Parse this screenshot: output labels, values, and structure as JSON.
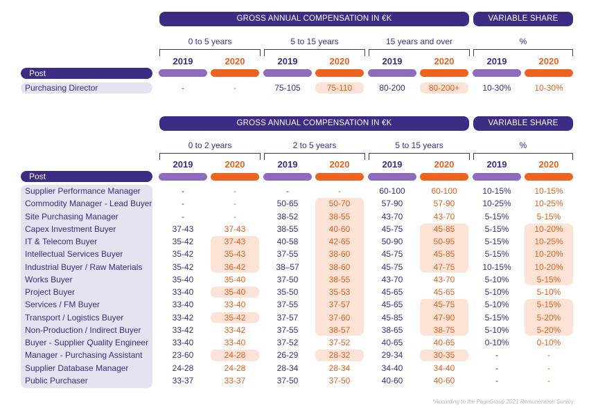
{
  "table1": {
    "banner_gross": "GROSS ANNUAL COMPENSATION IN €K",
    "banner_variable": "VARIABLE SHARE",
    "ranges": [
      "0 to 5 years",
      "5 to 15 years",
      "15 years and over",
      "%"
    ],
    "year_2019": "2019",
    "year_2020": "2020",
    "post_header": "Post",
    "rows": [
      {
        "post": "Purchasing Director",
        "values": [
          "-",
          "-",
          "75-105",
          "75-110",
          "80-200",
          "80-200+",
          "10-30%",
          "10-30%"
        ],
        "highlight": [
          false,
          false,
          false,
          true,
          false,
          true,
          false,
          false
        ]
      }
    ]
  },
  "table2": {
    "banner_gross": "GROSS ANNUAL COMPENSATION IN €K",
    "banner_variable": "VARIABLE SHARE",
    "ranges": [
      "0 to 2 years",
      "2 to 5 years",
      "5 to 15 years",
      "%"
    ],
    "year_2019": "2019",
    "year_2020": "2020",
    "post_header": "Post",
    "rows": [
      {
        "post": "Supplier Performance Manager",
        "values": [
          "-",
          "-",
          "-",
          "-",
          "60-100",
          "60-100",
          "10-15%",
          "10-15%"
        ],
        "highlight": [
          false,
          false,
          false,
          false,
          false,
          false,
          false,
          false
        ]
      },
      {
        "post": "Commodity Manager - Lead Buyer",
        "values": [
          "-",
          "-",
          "50-65",
          "50-70",
          "57-90",
          "57-90",
          "10-25%",
          "10-25%"
        ],
        "highlight": [
          false,
          false,
          false,
          true,
          false,
          false,
          false,
          false
        ]
      },
      {
        "post": "Site Purchasing Manager",
        "values": [
          "-",
          "-",
          "38-52",
          "38-55",
          "43-70",
          "43-70",
          "5-15%",
          "5-15%"
        ],
        "highlight": [
          false,
          false,
          false,
          true,
          false,
          false,
          false,
          false
        ]
      },
      {
        "post": "Capex Investment Buyer",
        "values": [
          "37-43",
          "37-43",
          "38-55",
          "40-60",
          "45-75",
          "45-85",
          "5-15%",
          "10-20%"
        ],
        "highlight": [
          false,
          false,
          false,
          true,
          false,
          true,
          false,
          true
        ]
      },
      {
        "post": "IT & Telecom Buyer",
        "values": [
          "35-42",
          "37-43",
          "40-58",
          "42-65",
          "50-90",
          "50-95",
          "5-15%",
          "10-25%"
        ],
        "highlight": [
          false,
          true,
          false,
          true,
          false,
          true,
          false,
          true
        ]
      },
      {
        "post": "Intellectual Services Buyer",
        "values": [
          "35-42",
          "35-43",
          "37-55",
          "38-60",
          "45-75",
          "45-85",
          "5-15%",
          "10-20%"
        ],
        "highlight": [
          false,
          true,
          false,
          true,
          false,
          true,
          false,
          true
        ]
      },
      {
        "post": "Industrial Buyer / Raw Materials",
        "values": [
          "35-42",
          "36-42",
          "38–57",
          "38-60",
          "45-75",
          "47-75",
          "10-15%",
          "10-20%"
        ],
        "highlight": [
          false,
          true,
          false,
          true,
          false,
          true,
          false,
          true
        ]
      },
      {
        "post": "Works Buyer",
        "values": [
          "35-40",
          "35-40",
          "37-50",
          "38-55",
          "43-70",
          "43-70",
          "5-10%",
          "5-15%"
        ],
        "highlight": [
          false,
          false,
          false,
          true,
          false,
          false,
          false,
          true
        ]
      },
      {
        "post": "Project Buyer",
        "values": [
          "33-40",
          "35-40",
          "35-50",
          "35-53",
          "45-65",
          "45-65",
          "5-10%",
          "5-10%"
        ],
        "highlight": [
          false,
          true,
          false,
          true,
          false,
          false,
          false,
          false
        ]
      },
      {
        "post": "Services / FM Buyer",
        "values": [
          "33-40",
          "33-40",
          "37-55",
          "37-57",
          "45-65",
          "45-75",
          "5-10%",
          "5-15%"
        ],
        "highlight": [
          false,
          false,
          false,
          true,
          false,
          true,
          false,
          true
        ]
      },
      {
        "post": "Transport / Logistics Buyer",
        "values": [
          "33-42",
          "35-42",
          "37-57",
          "37-60",
          "45-85",
          "47-90",
          "5-15%",
          "5-20%"
        ],
        "highlight": [
          false,
          true,
          false,
          true,
          false,
          true,
          false,
          true
        ]
      },
      {
        "post": "Non-Production / Indirect Buyer",
        "values": [
          "33-42",
          "33-42",
          "37-55",
          "38-57",
          "38-65",
          "38-75",
          "5-10%",
          "5-20%"
        ],
        "highlight": [
          false,
          false,
          false,
          true,
          false,
          true,
          false,
          true
        ]
      },
      {
        "post": "Buyer - Supplier Quality Engineer",
        "values": [
          "33-40",
          "33-40",
          "37-52",
          "37-52",
          "40-65",
          "40-65",
          "0-10%",
          "0-10%"
        ],
        "highlight": [
          false,
          false,
          false,
          false,
          false,
          false,
          false,
          false
        ]
      },
      {
        "post": "Manager - Purchasing Assistant",
        "values": [
          "23-60",
          "24-28",
          "26-29",
          "28-32",
          "29-34",
          "30-35",
          "-",
          "-"
        ],
        "highlight": [
          false,
          true,
          false,
          true,
          false,
          true,
          false,
          false
        ]
      },
      {
        "post": "Supplier Database Manager",
        "values": [
          "24-28",
          "24-28",
          "28-34",
          "28-34",
          "34-40",
          "34-40",
          "-",
          "-"
        ],
        "highlight": [
          false,
          false,
          false,
          false,
          false,
          false,
          false,
          false
        ]
      },
      {
        "post": "Public Purchaser",
        "values": [
          "33-37",
          "33-37",
          "37-50",
          "37-50",
          "40-60",
          "40-60",
          "-",
          "-"
        ],
        "highlight": [
          false,
          false,
          false,
          false,
          false,
          false,
          false,
          false
        ]
      }
    ]
  },
  "footnote": "*According to the PageGroup 2021 Remuneration Survey",
  "colors": {
    "navy": "#3d2b84",
    "orange": "#e8601c",
    "lilac": "#8e6bbd",
    "highlight": "#fce3d6",
    "label_bg": "#e7e2f0"
  }
}
